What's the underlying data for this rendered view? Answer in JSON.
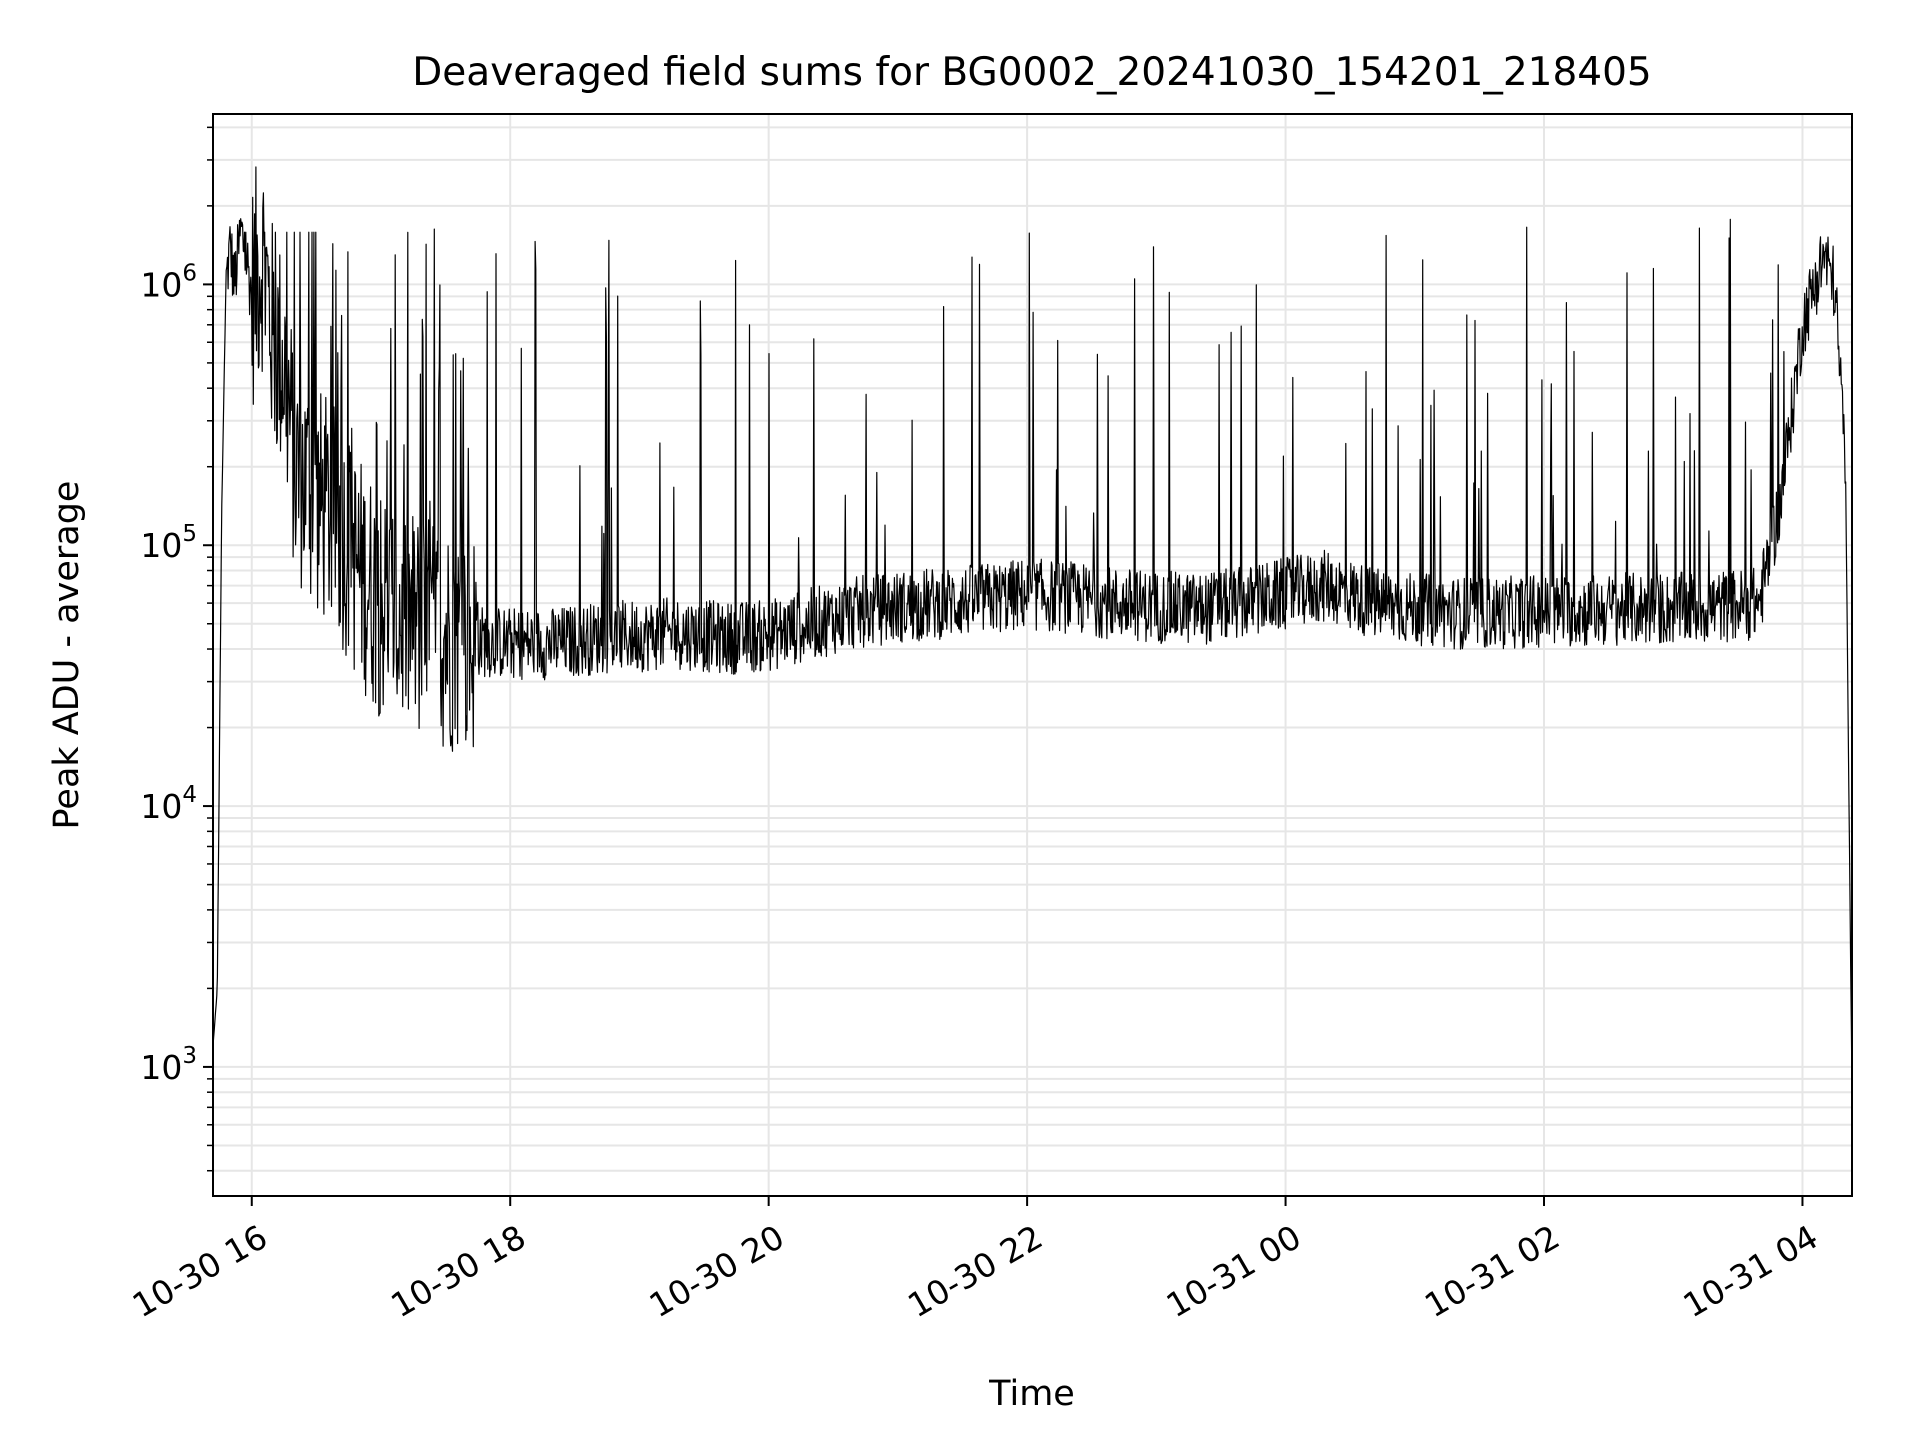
{
  "chart_data": {
    "type": "line",
    "title": "Deaveraged field sums for BG0002_20241030_154201_218405",
    "xlabel": "Time",
    "ylabel": "Peak ADU - average",
    "yscale": "log",
    "ylim": [
      320,
      4500000
    ],
    "xlim": [
      "2024-10-30 15:42",
      "2024-10-31 04:23"
    ],
    "grid": true,
    "line_color": "#000000",
    "x_ticks": [
      {
        "value": "2024-10-30 16:00",
        "label": "10-30 16"
      },
      {
        "value": "2024-10-30 18:00",
        "label": "10-30 18"
      },
      {
        "value": "2024-10-30 20:00",
        "label": "10-30 20"
      },
      {
        "value": "2024-10-30 22:00",
        "label": "10-30 22"
      },
      {
        "value": "2024-10-31 00:00",
        "label": "10-31 00"
      },
      {
        "value": "2024-10-31 02:00",
        "label": "10-31 02"
      },
      {
        "value": "2024-10-31 04:00",
        "label": "10-31 04"
      }
    ],
    "y_ticks": [
      {
        "value": 1000,
        "base": "10",
        "exp": "3"
      },
      {
        "value": 10000,
        "base": "10",
        "exp": "4"
      },
      {
        "value": 100000,
        "base": "10",
        "exp": "5"
      },
      {
        "value": 1000000,
        "base": "10",
        "exp": "6"
      }
    ],
    "series": [
      {
        "x": [
          "2024-10-30 15:42",
          "2024-10-30 15:44",
          "2024-10-30 15:46",
          "2024-10-30 15:48",
          "2024-10-30 15:50",
          "2024-10-30 15:52",
          "2024-10-30 15:55",
          "2024-10-30 15:58",
          "2024-10-30 16:00",
          "2024-10-30 16:05",
          "2024-10-30 16:10",
          "2024-10-30 16:15",
          "2024-10-30 16:20",
          "2024-10-30 16:30",
          "2024-10-30 16:40",
          "2024-10-30 16:50",
          "2024-10-30 17:00",
          "2024-10-30 17:15",
          "2024-10-30 17:30",
          "2024-10-30 17:45",
          "2024-10-30 18:00",
          "2024-10-30 18:20",
          "2024-10-30 18:40",
          "2024-10-30 19:00",
          "2024-10-30 19:20",
          "2024-10-30 19:40",
          "2024-10-30 20:00",
          "2024-10-30 20:20",
          "2024-10-30 20:40",
          "2024-10-30 21:00",
          "2024-10-30 21:20",
          "2024-10-30 21:40",
          "2024-10-30 22:00",
          "2024-10-30 22:20",
          "2024-10-30 22:40",
          "2024-10-30 23:00",
          "2024-10-30 23:20",
          "2024-10-30 23:40",
          "2024-10-31 00:00",
          "2024-10-31 00:20",
          "2024-10-31 00:40",
          "2024-10-31 01:00",
          "2024-10-31 01:20",
          "2024-10-31 01:40",
          "2024-10-31 02:00",
          "2024-10-31 02:20",
          "2024-10-31 02:40",
          "2024-10-31 03:00",
          "2024-10-31 03:20",
          "2024-10-31 03:40",
          "2024-10-31 03:50",
          "2024-10-31 04:00",
          "2024-10-31 04:10",
          "2024-10-31 04:15",
          "2024-10-31 04:20",
          "2024-10-31 04:23"
        ],
        "y": [
          1200,
          2000,
          130000,
          1000000,
          1400000,
          1000000,
          1600000,
          1200000,
          900000,
          1300000,
          600000,
          500000,
          200000,
          150000,
          120000,
          80000,
          60000,
          50000,
          45000,
          43000,
          42000,
          42000,
          44000,
          45000,
          46000,
          44000,
          45000,
          50000,
          55000,
          58000,
          60000,
          62000,
          65000,
          63000,
          60000,
          58000,
          57000,
          60000,
          65000,
          70000,
          60000,
          57000,
          55000,
          55000,
          56000,
          56000,
          57000,
          57000,
          58000,
          60000,
          150000,
          700000,
          1300000,
          1000000,
          200000,
          800
        ]
      }
    ]
  }
}
